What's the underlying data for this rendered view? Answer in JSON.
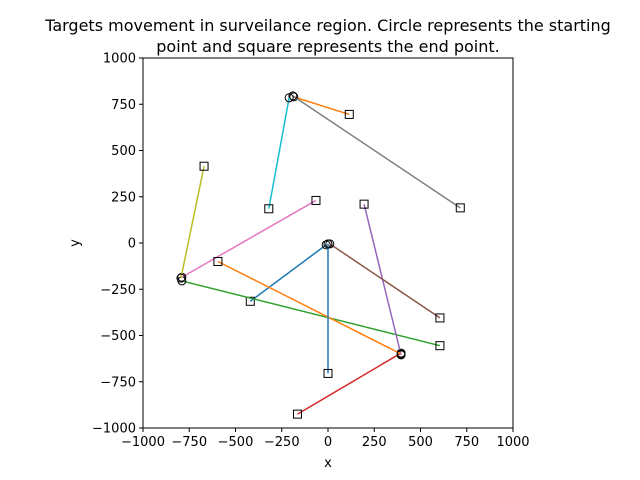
{
  "chart_data": {
    "type": "line",
    "title_lines": [
      "Targets movement in surveilance region. Circle represents the starting",
      "point and square represents the end point."
    ],
    "xlabel": "x",
    "ylabel": "y",
    "xlim": [
      -1000,
      1000
    ],
    "ylim": [
      -1000,
      1000
    ],
    "xticks": [
      -1000,
      -750,
      -500,
      -250,
      0,
      250,
      500,
      750,
      1000
    ],
    "yticks": [
      -1000,
      -750,
      -500,
      -250,
      0,
      250,
      500,
      750,
      1000
    ],
    "xtick_labels": [
      "−1000",
      "−750",
      "−500",
      "−250",
      "0",
      "250",
      "500",
      "750",
      "1000"
    ],
    "ytick_labels": [
      "−1000",
      "−750",
      "−500",
      "−250",
      "0",
      "250",
      "500",
      "750",
      "1000"
    ],
    "grid": false,
    "start_marker": "circle",
    "end_marker": "square",
    "series": [
      {
        "color": "#1f77b4",
        "start": [
          -10,
          -10
        ],
        "end": [
          -420,
          -315
        ]
      },
      {
        "color": "#ff7f0e",
        "start": [
          -185,
          790
        ],
        "end": [
          115,
          695
        ]
      },
      {
        "color": "#2ca02c",
        "start": [
          -790,
          -205
        ],
        "end": [
          605,
          -555
        ]
      },
      {
        "color": "#d62728",
        "start": [
          395,
          -595
        ],
        "end": [
          -165,
          -925
        ]
      },
      {
        "color": "#9467bd",
        "start": [
          395,
          -605
        ],
        "end": [
          195,
          210
        ]
      },
      {
        "color": "#8c564b",
        "start": [
          10,
          -5
        ],
        "end": [
          605,
          -405
        ]
      },
      {
        "color": "#e377c2",
        "start": [
          -790,
          -185
        ],
        "end": [
          -65,
          230
        ]
      },
      {
        "color": "#7f7f7f",
        "start": [
          -190,
          795
        ],
        "end": [
          715,
          190
        ]
      },
      {
        "color": "#bcbd22",
        "start": [
          -795,
          -190
        ],
        "end": [
          -670,
          415
        ]
      },
      {
        "color": "#17becf",
        "start": [
          -210,
          785
        ],
        "end": [
          -320,
          185
        ]
      },
      {
        "color": "#ff7f0e",
        "start": [
          395,
          -600
        ],
        "end": [
          -595,
          -100
        ]
      },
      {
        "color": "#1f77b4",
        "start": [
          0,
          -5
        ],
        "end": [
          0,
          -705
        ]
      }
    ]
  }
}
